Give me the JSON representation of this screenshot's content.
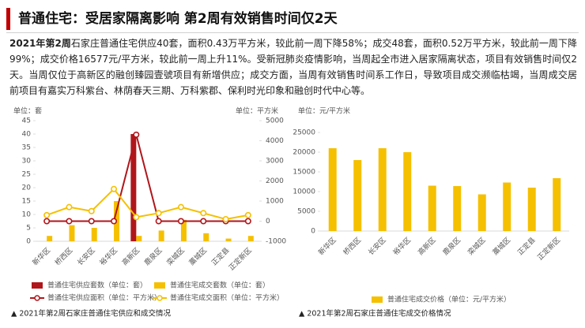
{
  "header": {
    "title": "普通住宅：受居家隔离影响 第2周有效销售时间仅2天"
  },
  "paragraph": {
    "lead": "2021年第2周",
    "text": "石家庄普通住宅供应40套，面积0.43万平方米，较此前一周下降58%；成交48套，面积0.52万平方米，较此前一周下降99%；成交价格16577元/平方米，较此前一周上升11%。受新冠肺炎疫情影响，当周起全市进入居家隔离状态，项目有效销售时间仅2天。当周仅位于高新区的融创臻园壹號项目有新增供应；成交方面，当周有效销售时间系工作日，导致项目成交濒临枯竭，当周成交居前项目有嘉实万科紫台、林荫春天三期、万科紫郡、保利时光印象和融创时代中心等。"
  },
  "chart_data": [
    {
      "type": "combo",
      "caption": "▲ 2021年第2周石家庄普通住宅供应和成交情况",
      "y_label": "单位：套",
      "y2_label": "单位：平方米",
      "categories": [
        "新华区",
        "桥西区",
        "长安区",
        "裕华区",
        "高新区",
        "鹿泉区",
        "栾城区",
        "藁城区",
        "正定县",
        "正定新区"
      ],
      "series": [
        {
          "name": "普通住宅供应套数（单位：套）",
          "type": "bar",
          "color": "#b0161b",
          "values": [
            0,
            0,
            0,
            0,
            40,
            0,
            0,
            0,
            0,
            0
          ]
        },
        {
          "name": "普通住宅成交套数（单位：套）",
          "type": "bar",
          "color": "#f5c000",
          "values": [
            2,
            6,
            5,
            15,
            2,
            4,
            8,
            3,
            1,
            2
          ]
        },
        {
          "name": "普通住宅供应面积（单位：平方米）",
          "type": "line",
          "axis": "y2",
          "color": "#b0161b",
          "values": [
            0,
            0,
            0,
            0,
            4300,
            0,
            0,
            0,
            0,
            0
          ]
        },
        {
          "name": "普通住宅成交面积（单位：平方米）",
          "type": "line",
          "axis": "y2",
          "color": "#f5c000",
          "values": [
            300,
            700,
            500,
            1600,
            200,
            400,
            700,
            400,
            100,
            300
          ]
        }
      ],
      "ylim": [
        0,
        45
      ],
      "yticks": [
        0,
        5,
        10,
        15,
        20,
        25,
        30,
        35,
        40,
        45
      ],
      "y2lim": [
        -1000,
        5000
      ],
      "y2ticks": [
        -1000,
        0,
        1000,
        2000,
        3000,
        4000,
        5000
      ]
    },
    {
      "type": "bar",
      "caption": "▲ 2021年第2周石家庄普通住宅成交价格情况",
      "y_label": "单位：元/平方米",
      "categories": [
        "新华区",
        "桥西区",
        "长安区",
        "裕华区",
        "高新区",
        "鹿泉区",
        "栾城区",
        "藁城区",
        "正定县",
        "正定新区"
      ],
      "series": [
        {
          "name": "普通住宅成交价格（单位：元/平方米）",
          "type": "bar",
          "color": "#f5c000",
          "values": [
            21000,
            18000,
            21000,
            20000,
            11500,
            11400,
            9300,
            12300,
            11000,
            13400
          ]
        }
      ],
      "ylim": [
        0,
        25000
      ],
      "yticks": [
        0,
        5000,
        10000,
        15000,
        20000,
        25000
      ]
    }
  ]
}
